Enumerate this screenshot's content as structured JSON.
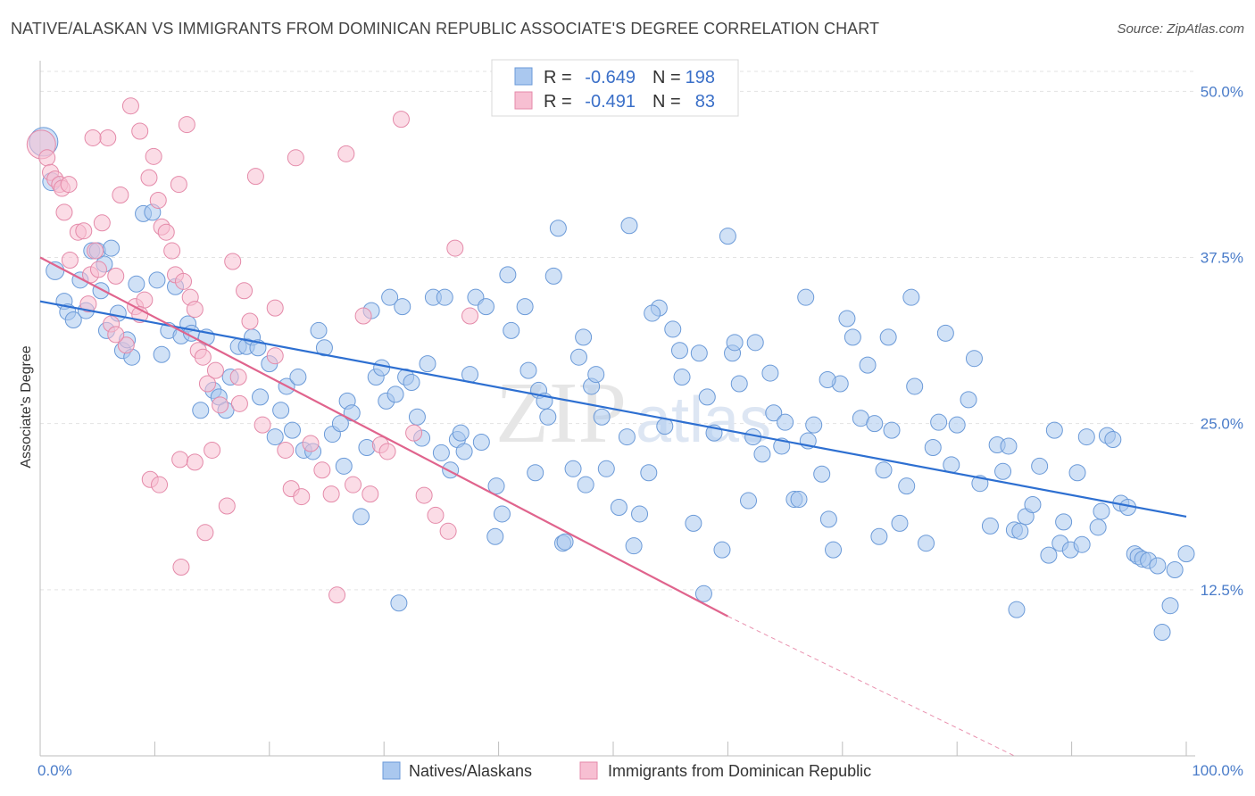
{
  "chart_data": {
    "type": "scatter",
    "title": "NATIVE/ALASKAN VS IMMIGRANTS FROM DOMINICAN REPUBLIC ASSOCIATE'S DEGREE CORRELATION CHART",
    "source": "Source: ZipAtlas.com",
    "ylabel": "Associate's Degree",
    "xlabel": "",
    "xlim": [
      0,
      100
    ],
    "ylim": [
      0,
      51.5
    ],
    "x_tick_labels": {
      "left": "0.0%",
      "right": "100.0%"
    },
    "y_ticks": [
      {
        "value": 12.5,
        "label": "12.5%"
      },
      {
        "value": 25.0,
        "label": "25.0%"
      },
      {
        "value": 37.5,
        "label": "37.5%"
      },
      {
        "value": 50.0,
        "label": "50.0%"
      }
    ],
    "watermark": {
      "zip": "ZIP",
      "atlas": "atlas"
    },
    "stats_box": {
      "r_label": "R =",
      "n_label": "N =",
      "rows": [
        {
          "r": "-0.649",
          "n": "198"
        },
        {
          "r": "-0.491",
          "n": "83"
        }
      ]
    },
    "series": [
      {
        "name": "Natives/Alaskans",
        "color": "#aac8ef",
        "stroke": "#6b9ad8",
        "line_color": "#2d6fd1",
        "trend": {
          "x0": 0,
          "y0": 34.2,
          "x1": 100,
          "y1": 18.0,
          "dash_to": null
        },
        "points": [
          [
            0.3,
            46.2,
            "L"
          ],
          [
            1.0,
            43.2,
            "M"
          ],
          [
            1.3,
            36.5,
            "M"
          ],
          [
            2.1,
            34.2
          ],
          [
            2.4,
            33.4
          ],
          [
            2.9,
            32.8
          ],
          [
            3.5,
            35.8
          ],
          [
            4.0,
            33.5
          ],
          [
            4.5,
            38.0
          ],
          [
            5.0,
            38.0
          ],
          [
            5.3,
            35.0
          ],
          [
            5.6,
            37.0
          ],
          [
            5.8,
            32.0
          ],
          [
            6.2,
            38.2
          ],
          [
            6.8,
            33.3
          ],
          [
            7.2,
            30.5
          ],
          [
            7.6,
            31.3
          ],
          [
            8.0,
            30.0
          ],
          [
            8.4,
            35.5
          ],
          [
            9.0,
            40.8
          ],
          [
            9.8,
            40.9
          ],
          [
            10.2,
            35.8
          ],
          [
            10.6,
            30.2
          ],
          [
            11.2,
            32.0
          ],
          [
            11.8,
            35.3
          ],
          [
            12.3,
            31.6
          ],
          [
            12.9,
            32.5
          ],
          [
            13.2,
            31.8
          ],
          [
            14.0,
            26.0
          ],
          [
            14.5,
            31.5
          ],
          [
            15.1,
            27.5
          ],
          [
            15.6,
            27.0
          ],
          [
            16.2,
            26.0
          ],
          [
            16.6,
            28.5
          ],
          [
            17.3,
            30.8
          ],
          [
            18.0,
            30.8
          ],
          [
            18.5,
            31.5
          ],
          [
            19.0,
            30.7
          ],
          [
            19.2,
            27.0
          ],
          [
            20.0,
            29.5
          ],
          [
            20.5,
            24.0
          ],
          [
            21.0,
            26.0
          ],
          [
            21.5,
            27.8
          ],
          [
            22.0,
            24.5
          ],
          [
            22.5,
            28.5
          ],
          [
            23.0,
            23.0
          ],
          [
            23.8,
            22.9
          ],
          [
            24.3,
            32.0
          ],
          [
            24.8,
            30.7
          ],
          [
            25.5,
            24.2
          ],
          [
            26.2,
            25.0
          ],
          [
            26.5,
            21.8
          ],
          [
            26.8,
            26.7
          ],
          [
            27.2,
            25.8
          ],
          [
            28.0,
            18.0
          ],
          [
            28.5,
            23.2
          ],
          [
            28.9,
            33.5
          ],
          [
            29.3,
            28.5
          ],
          [
            29.8,
            29.2
          ],
          [
            30.2,
            26.7
          ],
          [
            30.5,
            34.5
          ],
          [
            31.0,
            27.2
          ],
          [
            31.6,
            33.8
          ],
          [
            31.9,
            28.5
          ],
          [
            32.4,
            28.1
          ],
          [
            32.9,
            25.5
          ],
          [
            33.3,
            23.9
          ],
          [
            33.8,
            29.5
          ],
          [
            34.3,
            34.5
          ],
          [
            35.0,
            22.8
          ],
          [
            35.3,
            34.5
          ],
          [
            35.8,
            21.5
          ],
          [
            36.4,
            23.8
          ],
          [
            36.7,
            24.3
          ],
          [
            37.0,
            22.9
          ],
          [
            37.5,
            28.7
          ],
          [
            38.0,
            34.5
          ],
          [
            38.5,
            23.6
          ],
          [
            38.9,
            33.8
          ],
          [
            39.8,
            20.3
          ],
          [
            40.3,
            18.2
          ],
          [
            40.8,
            36.2
          ],
          [
            41.1,
            32.0
          ],
          [
            42.3,
            33.8
          ],
          [
            42.6,
            29.0
          ],
          [
            43.2,
            21.3
          ],
          [
            43.5,
            27.5
          ],
          [
            44.0,
            26.7
          ],
          [
            44.3,
            25.5
          ],
          [
            44.8,
            36.1
          ],
          [
            45.2,
            39.7
          ],
          [
            45.6,
            16.0
          ],
          [
            46.5,
            21.6
          ],
          [
            47.0,
            30.0
          ],
          [
            47.4,
            31.5
          ],
          [
            47.6,
            20.4
          ],
          [
            48.1,
            27.8
          ],
          [
            48.5,
            28.7
          ],
          [
            49.0,
            25.5
          ],
          [
            49.4,
            21.6
          ],
          [
            50.5,
            18.7
          ],
          [
            51.2,
            24.0
          ],
          [
            51.4,
            39.9
          ],
          [
            51.8,
            15.8
          ],
          [
            52.3,
            18.2
          ],
          [
            53.1,
            21.3
          ],
          [
            54.0,
            33.7
          ],
          [
            54.5,
            24.8
          ],
          [
            55.2,
            32.1
          ],
          [
            55.8,
            30.5
          ],
          [
            56.0,
            28.5
          ],
          [
            57.0,
            17.5
          ],
          [
            57.5,
            30.3
          ],
          [
            58.2,
            27.0
          ],
          [
            58.8,
            24.3
          ],
          [
            59.5,
            15.5
          ],
          [
            60.0,
            39.1
          ],
          [
            60.4,
            30.3
          ],
          [
            60.6,
            31.1
          ],
          [
            61.0,
            28.0
          ],
          [
            61.8,
            19.2
          ],
          [
            62.2,
            24.0
          ],
          [
            62.4,
            31.1
          ],
          [
            63.0,
            22.7
          ],
          [
            63.7,
            28.8
          ],
          [
            64.0,
            25.8
          ],
          [
            64.7,
            23.3
          ],
          [
            65.0,
            25.1
          ],
          [
            65.8,
            19.3
          ],
          [
            66.2,
            19.3
          ],
          [
            66.8,
            34.5
          ],
          [
            67.0,
            23.7
          ],
          [
            67.5,
            24.9
          ],
          [
            68.2,
            21.2
          ],
          [
            68.8,
            17.8
          ],
          [
            69.2,
            15.5
          ],
          [
            69.8,
            28.0
          ],
          [
            70.4,
            32.9
          ],
          [
            70.9,
            31.5
          ],
          [
            71.6,
            25.4
          ],
          [
            72.2,
            29.4
          ],
          [
            72.8,
            25.0
          ],
          [
            73.6,
            21.5
          ],
          [
            74.0,
            31.5
          ],
          [
            74.3,
            24.5
          ],
          [
            75.0,
            17.5
          ],
          [
            75.6,
            20.3
          ],
          [
            76.0,
            34.5
          ],
          [
            76.3,
            27.8
          ],
          [
            77.3,
            16.0
          ],
          [
            77.9,
            23.2
          ],
          [
            78.4,
            25.1
          ],
          [
            79.0,
            31.8
          ],
          [
            79.5,
            21.9
          ],
          [
            80.0,
            24.9
          ],
          [
            81.0,
            26.8
          ],
          [
            81.5,
            29.9
          ],
          [
            82.0,
            20.5
          ],
          [
            82.9,
            17.3
          ],
          [
            83.5,
            23.4
          ],
          [
            84.0,
            21.4
          ],
          [
            84.5,
            23.3
          ],
          [
            85.0,
            17.0
          ],
          [
            85.5,
            16.9
          ],
          [
            86.0,
            18.0
          ],
          [
            86.6,
            18.9
          ],
          [
            87.2,
            21.8
          ],
          [
            88.0,
            15.1
          ],
          [
            88.5,
            24.5
          ],
          [
            89.0,
            16.0
          ],
          [
            89.3,
            17.6
          ],
          [
            89.9,
            15.5
          ],
          [
            90.5,
            21.3
          ],
          [
            90.9,
            15.9
          ],
          [
            91.3,
            24.0
          ],
          [
            92.3,
            17.2
          ],
          [
            92.6,
            18.4
          ],
          [
            93.1,
            24.1
          ],
          [
            93.6,
            23.8
          ],
          [
            94.3,
            19.0
          ],
          [
            94.9,
            18.7
          ],
          [
            95.5,
            15.2
          ],
          [
            95.8,
            15.0
          ],
          [
            96.2,
            14.8
          ],
          [
            96.7,
            14.7
          ],
          [
            97.5,
            14.3
          ],
          [
            97.9,
            9.3
          ],
          [
            98.6,
            11.3
          ],
          [
            99.0,
            14.0
          ],
          [
            100.0,
            15.2
          ],
          [
            31.3,
            11.5
          ],
          [
            39.7,
            16.5
          ],
          [
            57.9,
            12.2
          ],
          [
            85.2,
            11.0
          ],
          [
            68.7,
            28.3
          ],
          [
            45.8,
            16.1
          ],
          [
            53.4,
            33.3
          ],
          [
            73.2,
            16.5
          ]
        ]
      },
      {
        "name": "Immigrants from Dominican Republic",
        "color": "#f7bfd2",
        "stroke": "#e48aa9",
        "line_color": "#e0648d",
        "trend": {
          "x0": 0,
          "y0": 37.5,
          "x1": 60,
          "y1": 10.5,
          "dash_to": [
            85,
            0
          ]
        },
        "points": [
          [
            0.1,
            46.0,
            "L"
          ],
          [
            0.6,
            45.0
          ],
          [
            0.9,
            43.9
          ],
          [
            1.3,
            43.4
          ],
          [
            1.7,
            43.0
          ],
          [
            1.9,
            42.7
          ],
          [
            2.1,
            40.9
          ],
          [
            2.5,
            43.0
          ],
          [
            2.6,
            37.3
          ],
          [
            3.3,
            39.4
          ],
          [
            3.8,
            39.5
          ],
          [
            4.2,
            34.0
          ],
          [
            4.4,
            36.2
          ],
          [
            4.8,
            38.0
          ],
          [
            5.1,
            36.6
          ],
          [
            5.4,
            40.1
          ],
          [
            5.9,
            46.5
          ],
          [
            6.2,
            32.5
          ],
          [
            6.6,
            36.1
          ],
          [
            7.0,
            42.2
          ],
          [
            7.5,
            30.9
          ],
          [
            7.9,
            48.9
          ],
          [
            8.3,
            33.8
          ],
          [
            8.7,
            47.0
          ],
          [
            9.1,
            34.3
          ],
          [
            9.5,
            43.5
          ],
          [
            9.9,
            45.1
          ],
          [
            10.3,
            41.8
          ],
          [
            10.6,
            39.8
          ],
          [
            11.0,
            39.4
          ],
          [
            11.5,
            38.0
          ],
          [
            11.8,
            36.2
          ],
          [
            12.1,
            43.0
          ],
          [
            12.5,
            35.7
          ],
          [
            12.8,
            47.5
          ],
          [
            13.1,
            34.5
          ],
          [
            13.5,
            33.6
          ],
          [
            13.8,
            30.5
          ],
          [
            14.2,
            30.0
          ],
          [
            14.6,
            28.0
          ],
          [
            15.0,
            23.0
          ],
          [
            15.3,
            29.0
          ],
          [
            15.7,
            26.4
          ],
          [
            16.3,
            18.8
          ],
          [
            16.8,
            37.2
          ],
          [
            17.4,
            26.5
          ],
          [
            17.8,
            35.0
          ],
          [
            18.3,
            32.7
          ],
          [
            18.8,
            43.6
          ],
          [
            19.4,
            24.9
          ],
          [
            20.5,
            33.7
          ],
          [
            21.4,
            23.0
          ],
          [
            21.9,
            20.1
          ],
          [
            22.3,
            45.0
          ],
          [
            22.8,
            19.5
          ],
          [
            23.6,
            23.5
          ],
          [
            24.6,
            21.5
          ],
          [
            25.4,
            19.7
          ],
          [
            25.9,
            12.1
          ],
          [
            26.7,
            45.3
          ],
          [
            27.3,
            20.4
          ],
          [
            28.2,
            33.1
          ],
          [
            28.8,
            19.7
          ],
          [
            29.7,
            23.4
          ],
          [
            30.3,
            22.9
          ],
          [
            31.5,
            47.9
          ],
          [
            32.6,
            24.3
          ],
          [
            33.5,
            19.6
          ],
          [
            34.5,
            18.1
          ],
          [
            35.6,
            16.9
          ],
          [
            36.2,
            38.2
          ],
          [
            37.5,
            33.1
          ],
          [
            4.6,
            46.5
          ],
          [
            6.6,
            31.7
          ],
          [
            8.7,
            33.2
          ],
          [
            9.6,
            20.8
          ],
          [
            10.4,
            20.4
          ],
          [
            12.2,
            22.3
          ],
          [
            13.5,
            22.1
          ],
          [
            14.4,
            16.8
          ],
          [
            12.3,
            14.2
          ],
          [
            17.3,
            28.5
          ],
          [
            20.5,
            30.1
          ]
        ]
      }
    ],
    "legend": [
      "Natives/Alaskans",
      "Immigrants from Dominican Republic"
    ]
  }
}
